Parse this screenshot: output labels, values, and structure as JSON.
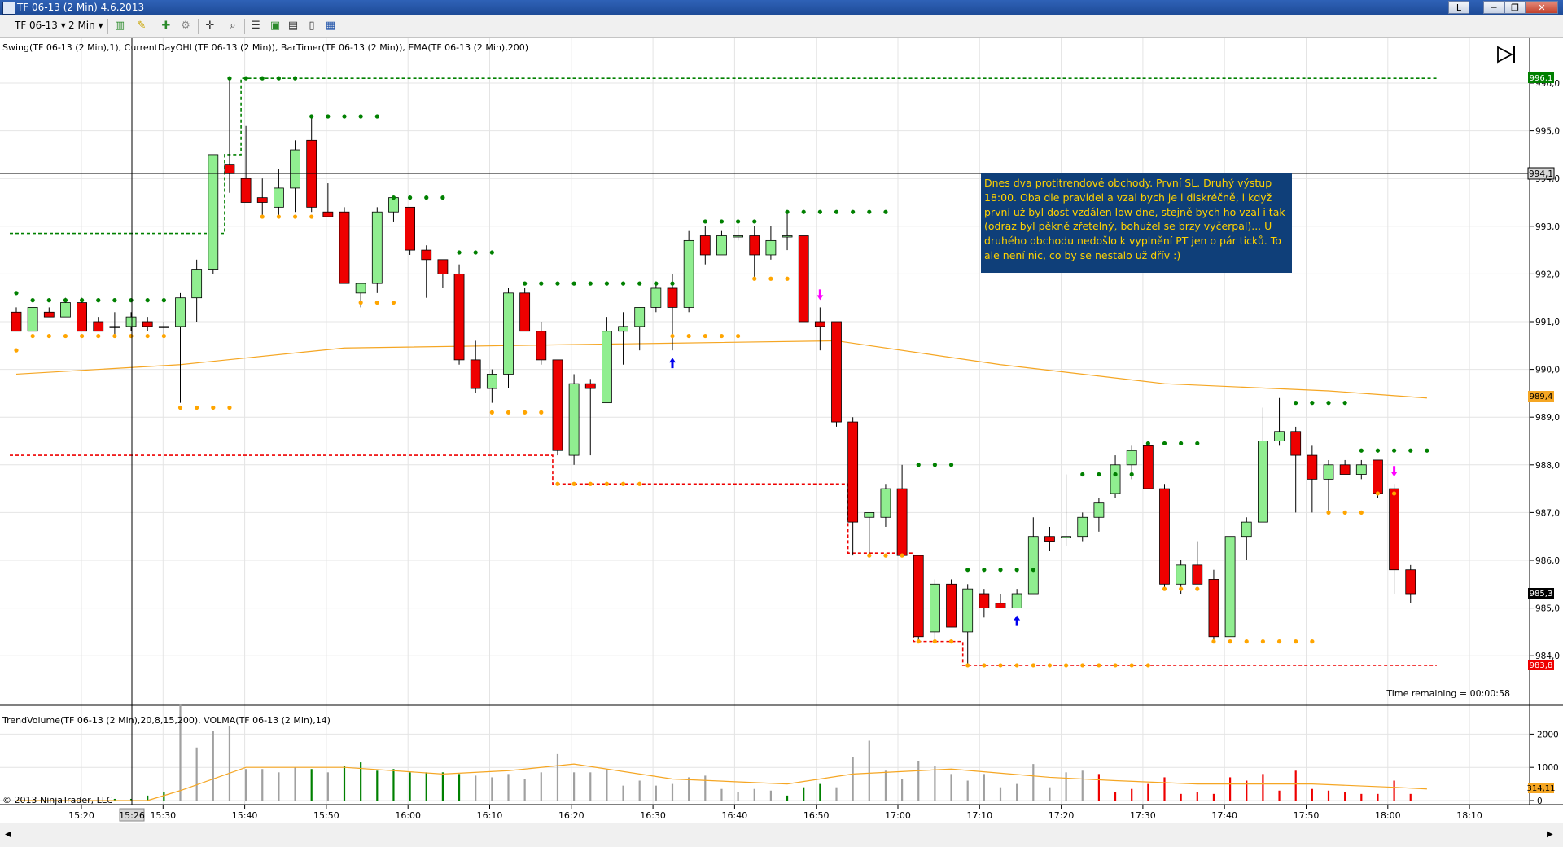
{
  "window": {
    "title": "TF 06-13 (2 Min)  4.6.2013",
    "buttons": [
      "L",
      "─",
      "❐",
      "✕"
    ]
  },
  "toolbar": {
    "instrument": "TF 06-13",
    "interval": "2 Min",
    "icons": [
      "bar-type-icon",
      "pencil-icon",
      "add-indicator-icon",
      "strategy-icon",
      "crosshair-icon",
      "zoom-icon",
      "properties-icon",
      "data-box-icon",
      "chart-snapshot-icon",
      "page-icon",
      "template-icon"
    ]
  },
  "price_panel": {
    "indicators_label": "Swing(TF 06-13 (2 Min),1), CurrentDayOHL(TF 06-13 (2 Min)), BarTimer(TF 06-13 (2 Min)), EMA(TF 06-13 (2 Min),200)",
    "time_remaining": "Time remaining = 00:00:58",
    "crosshair_price": "994,1",
    "tags": {
      "high": "996,1",
      "ema": "989,4",
      "last": "985,3",
      "low": "983,8"
    }
  },
  "volume_panel": {
    "indicators_label": "TrendVolume(TF 06-13 (2 Min),20,8,15,200), VOLMA(TF 06-13 (2 Min),14)",
    "copyright": "© 2013 NinjaTrader, LLC",
    "vol_tag": "314,11"
  },
  "x_axis": {
    "highlight": "15:26",
    "ticks": [
      "15:20",
      "15:30",
      "15:40",
      "15:50",
      "16:00",
      "16:10",
      "16:20",
      "16:30",
      "16:40",
      "16:50",
      "17:00",
      "17:10",
      "17:20",
      "17:30",
      "17:40",
      "17:50",
      "18:00",
      "18:10"
    ]
  },
  "note": {
    "text": "Dnes dva protitrendové obchody. První SL. Druhý výstup 18:00. Oba dle pravidel a vzal bych je i diskréčně, i když první už byl dost vzdálen low dne, stejně bych ho vzal i tak (odraz byl pěkně zřetelný, bohužel se brzy vyčerpal)... U druhého obchodu nedošlo k vyplnění PT jen o pár ticků. To ale není nic, co by se nestalo už dřív :)"
  },
  "colors": {
    "up_candle": "#90ee90",
    "down_candle": "#ee0000",
    "swing_high": "#008000",
    "swing_low": "#ffa500",
    "day_high": "#008000",
    "day_low": "#ee0000",
    "ema": "#f5a623"
  },
  "chart_data": {
    "type": "candlestick",
    "price_axis": {
      "ticks": [
        "996,0",
        "995,0",
        "994,0",
        "993,0",
        "992,0",
        "991,0",
        "990,0",
        "989,0",
        "988,0",
        "987,0",
        "986,0",
        "985,0",
        "984,0"
      ]
    },
    "volume_axis": {
      "ticks": [
        "2000",
        "1000",
        "0"
      ]
    },
    "day_high": {
      "levels": [
        [
          0,
          992.85
        ],
        [
          13,
          994.5
        ],
        [
          14,
          996.1
        ]
      ]
    },
    "day_low": {
      "levels": [
        [
          0,
          988.2
        ],
        [
          33,
          987.6
        ],
        [
          51,
          986.15
        ],
        [
          55,
          984.3
        ],
        [
          58,
          983.8
        ]
      ]
    },
    "ema_200": [
      [
        0,
        989.9
      ],
      [
        10,
        990.1
      ],
      [
        20,
        990.45
      ],
      [
        30,
        990.5
      ],
      [
        40,
        990.55
      ],
      [
        50,
        990.6
      ],
      [
        60,
        990.1
      ],
      [
        70,
        989.7
      ],
      [
        80,
        989.55
      ],
      [
        86,
        989.4
      ]
    ],
    "candles": [
      {
        "o": 991.2,
        "h": 991.3,
        "l": 990.8,
        "c": 990.8
      },
      {
        "o": 990.8,
        "h": 991.3,
        "l": 990.8,
        "c": 991.3
      },
      {
        "o": 991.2,
        "h": 991.3,
        "l": 991.1,
        "c": 991.1
      },
      {
        "o": 991.1,
        "h": 991.5,
        "l": 991.1,
        "c": 991.4
      },
      {
        "o": 991.4,
        "h": 991.5,
        "l": 990.8,
        "c": 990.8
      },
      {
        "o": 991.0,
        "h": 991.1,
        "l": 990.8,
        "c": 990.8
      },
      {
        "o": 990.9,
        "h": 991.2,
        "l": 990.7,
        "c": 990.9
      },
      {
        "o": 990.9,
        "h": 991.2,
        "l": 990.8,
        "c": 991.1
      },
      {
        "o": 991.0,
        "h": 991.1,
        "l": 990.8,
        "c": 990.9
      },
      {
        "o": 990.9,
        "h": 991.0,
        "l": 990.7,
        "c": 990.9
      },
      {
        "o": 990.9,
        "h": 991.6,
        "l": 989.3,
        "c": 991.5
      },
      {
        "o": 991.5,
        "h": 992.3,
        "l": 991.0,
        "c": 992.1
      },
      {
        "o": 992.1,
        "h": 994.5,
        "l": 992.0,
        "c": 994.5
      },
      {
        "o": 994.3,
        "h": 996.1,
        "l": 993.7,
        "c": 994.1
      },
      {
        "o": 994.0,
        "h": 995.1,
        "l": 993.5,
        "c": 993.5
      },
      {
        "o": 993.6,
        "h": 994.0,
        "l": 993.2,
        "c": 993.5
      },
      {
        "o": 993.4,
        "h": 994.2,
        "l": 993.2,
        "c": 993.8
      },
      {
        "o": 993.8,
        "h": 994.8,
        "l": 993.3,
        "c": 994.6
      },
      {
        "o": 994.8,
        "h": 995.3,
        "l": 993.3,
        "c": 993.4
      },
      {
        "o": 993.3,
        "h": 993.9,
        "l": 993.2,
        "c": 993.2
      },
      {
        "o": 993.3,
        "h": 993.4,
        "l": 991.8,
        "c": 991.8
      },
      {
        "o": 991.6,
        "h": 991.8,
        "l": 991.3,
        "c": 991.8
      },
      {
        "o": 991.8,
        "h": 993.4,
        "l": 991.6,
        "c": 993.3
      },
      {
        "o": 993.3,
        "h": 993.6,
        "l": 993.1,
        "c": 993.6
      },
      {
        "o": 993.4,
        "h": 993.4,
        "l": 992.4,
        "c": 992.5
      },
      {
        "o": 992.5,
        "h": 992.6,
        "l": 991.5,
        "c": 992.3
      },
      {
        "o": 992.3,
        "h": 992.3,
        "l": 991.7,
        "c": 992.0
      },
      {
        "o": 992.0,
        "h": 992.2,
        "l": 990.1,
        "c": 990.2
      },
      {
        "o": 990.2,
        "h": 990.6,
        "l": 989.5,
        "c": 989.6
      },
      {
        "o": 989.6,
        "h": 990.0,
        "l": 989.3,
        "c": 989.9
      },
      {
        "o": 989.9,
        "h": 991.7,
        "l": 989.6,
        "c": 991.6
      },
      {
        "o": 991.6,
        "h": 991.7,
        "l": 990.8,
        "c": 990.8
      },
      {
        "o": 990.8,
        "h": 991.0,
        "l": 990.1,
        "c": 990.2
      },
      {
        "o": 990.2,
        "h": 990.2,
        "l": 988.2,
        "c": 988.3
      },
      {
        "o": 988.2,
        "h": 989.9,
        "l": 988.0,
        "c": 989.7
      },
      {
        "o": 989.7,
        "h": 989.8,
        "l": 988.2,
        "c": 989.6
      },
      {
        "o": 989.3,
        "h": 991.1,
        "l": 989.3,
        "c": 990.8
      },
      {
        "o": 990.8,
        "h": 991.2,
        "l": 990.1,
        "c": 990.9
      },
      {
        "o": 990.9,
        "h": 991.3,
        "l": 990.4,
        "c": 991.3
      },
      {
        "o": 991.3,
        "h": 991.8,
        "l": 991.2,
        "c": 991.7
      },
      {
        "o": 991.7,
        "h": 992.0,
        "l": 990.4,
        "c": 991.3
      },
      {
        "o": 991.3,
        "h": 992.9,
        "l": 991.2,
        "c": 992.7
      },
      {
        "o": 992.8,
        "h": 993.0,
        "l": 992.2,
        "c": 992.4
      },
      {
        "o": 992.4,
        "h": 992.9,
        "l": 992.4,
        "c": 992.8
      },
      {
        "o": 992.8,
        "h": 993.0,
        "l": 992.7,
        "c": 992.8
      },
      {
        "o": 992.8,
        "h": 993.0,
        "l": 991.9,
        "c": 992.4
      },
      {
        "o": 992.4,
        "h": 993.0,
        "l": 992.3,
        "c": 992.7
      },
      {
        "o": 992.8,
        "h": 993.3,
        "l": 992.5,
        "c": 992.8
      },
      {
        "o": 992.8,
        "h": 992.8,
        "l": 991.0,
        "c": 991.0
      },
      {
        "o": 991.0,
        "h": 991.3,
        "l": 990.4,
        "c": 990.9
      },
      {
        "o": 991.0,
        "h": 991.0,
        "l": 988.8,
        "c": 988.9
      },
      {
        "o": 988.9,
        "h": 989.0,
        "l": 986.1,
        "c": 986.8
      },
      {
        "o": 986.9,
        "h": 987.0,
        "l": 986.1,
        "c": 987.0
      },
      {
        "o": 986.9,
        "h": 987.6,
        "l": 986.7,
        "c": 987.5
      },
      {
        "o": 987.5,
        "h": 988.0,
        "l": 986.1,
        "c": 986.1
      },
      {
        "o": 986.1,
        "h": 986.1,
        "l": 984.3,
        "c": 984.4
      },
      {
        "o": 984.5,
        "h": 985.6,
        "l": 984.3,
        "c": 985.5
      },
      {
        "o": 985.5,
        "h": 985.6,
        "l": 984.6,
        "c": 984.6
      },
      {
        "o": 984.5,
        "h": 985.5,
        "l": 983.8,
        "c": 985.4
      },
      {
        "o": 985.3,
        "h": 985.4,
        "l": 984.8,
        "c": 985.0
      },
      {
        "o": 985.1,
        "h": 985.3,
        "l": 985.0,
        "c": 985.0
      },
      {
        "o": 985.0,
        "h": 985.4,
        "l": 985.0,
        "c": 985.3
      },
      {
        "o": 985.3,
        "h": 986.9,
        "l": 985.3,
        "c": 986.5
      },
      {
        "o": 986.5,
        "h": 986.7,
        "l": 986.2,
        "c": 986.4
      },
      {
        "o": 986.5,
        "h": 987.8,
        "l": 986.3,
        "c": 986.5
      },
      {
        "o": 986.5,
        "h": 987.0,
        "l": 986.4,
        "c": 986.9
      },
      {
        "o": 986.9,
        "h": 987.3,
        "l": 986.6,
        "c": 987.2
      },
      {
        "o": 987.4,
        "h": 988.2,
        "l": 987.3,
        "c": 988.0
      },
      {
        "o": 988.0,
        "h": 988.4,
        "l": 987.7,
        "c": 988.3
      },
      {
        "o": 988.4,
        "h": 988.5,
        "l": 987.5,
        "c": 987.5
      },
      {
        "o": 987.5,
        "h": 987.6,
        "l": 985.4,
        "c": 985.5
      },
      {
        "o": 985.5,
        "h": 986.0,
        "l": 985.3,
        "c": 985.9
      },
      {
        "o": 985.9,
        "h": 986.4,
        "l": 985.5,
        "c": 985.5
      },
      {
        "o": 985.6,
        "h": 985.8,
        "l": 984.3,
        "c": 984.4
      },
      {
        "o": 984.4,
        "h": 986.5,
        "l": 984.4,
        "c": 986.5
      },
      {
        "o": 986.5,
        "h": 986.9,
        "l": 986.0,
        "c": 986.8
      },
      {
        "o": 986.8,
        "h": 989.2,
        "l": 986.8,
        "c": 988.5
      },
      {
        "o": 988.5,
        "h": 989.4,
        "l": 988.4,
        "c": 988.7
      },
      {
        "o": 988.7,
        "h": 988.8,
        "l": 987.0,
        "c": 988.2
      },
      {
        "o": 988.2,
        "h": 988.4,
        "l": 987.0,
        "c": 987.7
      },
      {
        "o": 987.7,
        "h": 988.1,
        "l": 987.0,
        "c": 988.0
      },
      {
        "o": 988.0,
        "h": 988.1,
        "l": 987.8,
        "c": 987.8
      },
      {
        "o": 987.8,
        "h": 988.1,
        "l": 987.7,
        "c": 988.0
      },
      {
        "o": 988.1,
        "h": 988.1,
        "l": 987.3,
        "c": 987.4
      },
      {
        "o": 987.5,
        "h": 987.6,
        "l": 985.3,
        "c": 985.8
      },
      {
        "o": 985.8,
        "h": 985.9,
        "l": 985.1,
        "c": 985.3
      }
    ],
    "volume": [
      {
        "v": 0,
        "c": "gray"
      },
      {
        "v": 0,
        "c": "gray"
      },
      {
        "v": 0,
        "c": "gray"
      },
      {
        "v": 0,
        "c": "gray"
      },
      {
        "v": 0,
        "c": "gray"
      },
      {
        "v": 0,
        "c": "gray"
      },
      {
        "v": 50,
        "c": "green"
      },
      {
        "v": 50,
        "c": "green"
      },
      {
        "v": 150,
        "c": "green"
      },
      {
        "v": 250,
        "c": "green"
      },
      {
        "v": 2900,
        "c": "gray"
      },
      {
        "v": 1600,
        "c": "gray"
      },
      {
        "v": 2100,
        "c": "gray"
      },
      {
        "v": 2250,
        "c": "gray"
      },
      {
        "v": 950,
        "c": "gray"
      },
      {
        "v": 950,
        "c": "gray"
      },
      {
        "v": 850,
        "c": "gray"
      },
      {
        "v": 1000,
        "c": "gray"
      },
      {
        "v": 950,
        "c": "green"
      },
      {
        "v": 850,
        "c": "gray"
      },
      {
        "v": 1050,
        "c": "green"
      },
      {
        "v": 1150,
        "c": "green"
      },
      {
        "v": 900,
        "c": "green"
      },
      {
        "v": 950,
        "c": "green"
      },
      {
        "v": 850,
        "c": "green"
      },
      {
        "v": 850,
        "c": "green"
      },
      {
        "v": 850,
        "c": "green"
      },
      {
        "v": 800,
        "c": "green"
      },
      {
        "v": 750,
        "c": "gray"
      },
      {
        "v": 700,
        "c": "gray"
      },
      {
        "v": 800,
        "c": "gray"
      },
      {
        "v": 650,
        "c": "gray"
      },
      {
        "v": 850,
        "c": "gray"
      },
      {
        "v": 1400,
        "c": "gray"
      },
      {
        "v": 850,
        "c": "gray"
      },
      {
        "v": 850,
        "c": "gray"
      },
      {
        "v": 950,
        "c": "gray"
      },
      {
        "v": 450,
        "c": "gray"
      },
      {
        "v": 600,
        "c": "gray"
      },
      {
        "v": 450,
        "c": "gray"
      },
      {
        "v": 500,
        "c": "gray"
      },
      {
        "v": 700,
        "c": "gray"
      },
      {
        "v": 750,
        "c": "gray"
      },
      {
        "v": 350,
        "c": "gray"
      },
      {
        "v": 250,
        "c": "gray"
      },
      {
        "v": 350,
        "c": "gray"
      },
      {
        "v": 300,
        "c": "gray"
      },
      {
        "v": 150,
        "c": "green"
      },
      {
        "v": 400,
        "c": "green"
      },
      {
        "v": 500,
        "c": "green"
      },
      {
        "v": 400,
        "c": "gray"
      },
      {
        "v": 1300,
        "c": "gray"
      },
      {
        "v": 1800,
        "c": "gray"
      },
      {
        "v": 900,
        "c": "gray"
      },
      {
        "v": 650,
        "c": "gray"
      },
      {
        "v": 1200,
        "c": "gray"
      },
      {
        "v": 1050,
        "c": "gray"
      },
      {
        "v": 800,
        "c": "gray"
      },
      {
        "v": 600,
        "c": "gray"
      },
      {
        "v": 800,
        "c": "gray"
      },
      {
        "v": 400,
        "c": "gray"
      },
      {
        "v": 500,
        "c": "gray"
      },
      {
        "v": 1100,
        "c": "gray"
      },
      {
        "v": 400,
        "c": "gray"
      },
      {
        "v": 850,
        "c": "gray"
      },
      {
        "v": 900,
        "c": "gray"
      },
      {
        "v": 800,
        "c": "red"
      },
      {
        "v": 250,
        "c": "red"
      },
      {
        "v": 350,
        "c": "red"
      },
      {
        "v": 500,
        "c": "red"
      },
      {
        "v": 700,
        "c": "red"
      },
      {
        "v": 200,
        "c": "red"
      },
      {
        "v": 250,
        "c": "red"
      },
      {
        "v": 200,
        "c": "red"
      },
      {
        "v": 700,
        "c": "red"
      },
      {
        "v": 600,
        "c": "red"
      },
      {
        "v": 800,
        "c": "red"
      },
      {
        "v": 300,
        "c": "red"
      },
      {
        "v": 900,
        "c": "red"
      },
      {
        "v": 350,
        "c": "red"
      },
      {
        "v": 300,
        "c": "red"
      },
      {
        "v": 250,
        "c": "red"
      },
      {
        "v": 200,
        "c": "red"
      },
      {
        "v": 200,
        "c": "red"
      },
      {
        "v": 600,
        "c": "red"
      },
      {
        "v": 200,
        "c": "red"
      }
    ],
    "volma": [
      [
        0,
        0
      ],
      [
        8,
        0
      ],
      [
        10,
        300
      ],
      [
        14,
        1000
      ],
      [
        20,
        1000
      ],
      [
        26,
        800
      ],
      [
        30,
        900
      ],
      [
        34,
        1100
      ],
      [
        40,
        650
      ],
      [
        47,
        500
      ],
      [
        51,
        800
      ],
      [
        57,
        950
      ],
      [
        63,
        700
      ],
      [
        67,
        600
      ],
      [
        72,
        500
      ],
      [
        79,
        500
      ],
      [
        84,
        400
      ],
      [
        86,
        350
      ]
    ],
    "swing_highs": [
      {
        "i": 0,
        "p": 991.6,
        "from": 0,
        "to": 0
      },
      {
        "i": 1,
        "p": 991.45,
        "from": 1,
        "to": 9
      },
      {
        "i": 13,
        "p": 996.1,
        "from": 13,
        "to": 17
      },
      {
        "i": 18,
        "p": 995.3,
        "from": 18,
        "to": 22
      },
      {
        "i": 23,
        "p": 993.6,
        "from": 23,
        "to": 26
      },
      {
        "i": 27,
        "p": 992.45,
        "from": 27,
        "to": 29
      },
      {
        "i": 31,
        "p": 991.8,
        "from": 31,
        "to": 40
      },
      {
        "i": 42,
        "p": 993.1,
        "from": 42,
        "to": 45
      },
      {
        "i": 47,
        "p": 993.3,
        "from": 47,
        "to": 53
      },
      {
        "i": 55,
        "p": 988.0,
        "from": 55,
        "to": 57
      },
      {
        "i": 58,
        "p": 985.8,
        "from": 58,
        "to": 62
      },
      {
        "i": 65,
        "p": 987.8,
        "from": 65,
        "to": 68
      },
      {
        "i": 69,
        "p": 988.45,
        "from": 69,
        "to": 72
      },
      {
        "i": 78,
        "p": 989.3,
        "from": 78,
        "to": 81
      },
      {
        "i": 82,
        "p": 988.3,
        "from": 82,
        "to": 86
      }
    ],
    "swing_lows": [
      {
        "p": 990.4,
        "from": 0,
        "to": 0
      },
      {
        "p": 990.7,
        "from": 1,
        "to": 9
      },
      {
        "p": 989.2,
        "from": 10,
        "to": 13
      },
      {
        "p": 993.2,
        "from": 15,
        "to": 18
      },
      {
        "p": 991.4,
        "from": 21,
        "to": 23
      },
      {
        "p": 989.1,
        "from": 29,
        "to": 32
      },
      {
        "p": 987.6,
        "from": 33,
        "to": 38
      },
      {
        "p": 990.7,
        "from": 40,
        "to": 44
      },
      {
        "p": 991.9,
        "from": 45,
        "to": 47
      },
      {
        "p": 986.1,
        "from": 52,
        "to": 54
      },
      {
        "p": 984.3,
        "from": 55,
        "to": 57
      },
      {
        "p": 983.8,
        "from": 58,
        "to": 69
      },
      {
        "p": 985.4,
        "from": 70,
        "to": 72
      },
      {
        "p": 984.3,
        "from": 73,
        "to": 79
      },
      {
        "p": 987.0,
        "from": 80,
        "to": 82
      },
      {
        "p": 987.4,
        "from": 83,
        "to": 84
      }
    ],
    "markers": [
      {
        "i": 40,
        "type": "buy-arrow"
      },
      {
        "i": 49,
        "type": "sell-arrow"
      },
      {
        "i": 61,
        "type": "buy-arrow"
      },
      {
        "i": 84,
        "type": "sell-arrow"
      }
    ]
  }
}
